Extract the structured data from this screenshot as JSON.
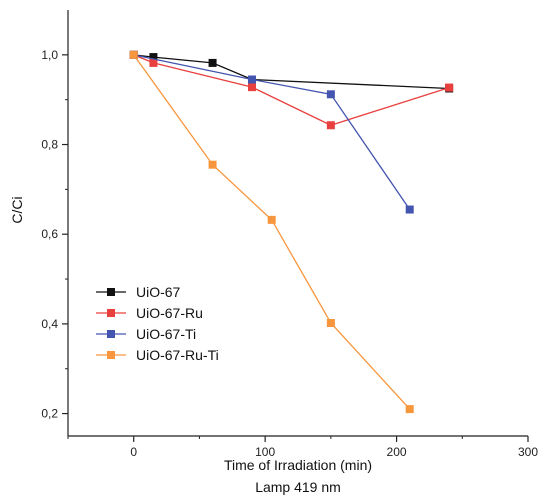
{
  "chart_data": {
    "type": "line",
    "xlabel": "Time of Irradiation (min)",
    "subtitle": "Lamp 419 nm",
    "ylabel": "C/Ci",
    "xlim": [
      -50,
      300
    ],
    "ylim": [
      0.15,
      1.1
    ],
    "xticks": [
      0,
      100,
      200,
      300
    ],
    "xtick_labels": [
      "0",
      "100",
      "200",
      "300"
    ],
    "yticks": [
      0.2,
      0.4,
      0.6,
      0.8,
      1.0
    ],
    "ytick_labels": [
      "0,2",
      "0,4",
      "0,6",
      "0,8",
      "1,0"
    ],
    "grid": false,
    "legend_position": "bottom-left",
    "series": [
      {
        "name": "UiO-67",
        "color": "#111111",
        "marker": "square",
        "x": [
          0,
          15,
          60,
          90,
          240
        ],
        "y": [
          1.0,
          0.995,
          0.982,
          0.945,
          0.925
        ]
      },
      {
        "name": "UiO-67-Ru",
        "color": "#e8403f",
        "marker": "square",
        "x": [
          0,
          15,
          90,
          150,
          240
        ],
        "y": [
          1.0,
          0.982,
          0.928,
          0.843,
          0.927
        ]
      },
      {
        "name": "UiO-67-Ti",
        "color": "#4455b0",
        "marker": "square",
        "x": [
          0,
          90,
          150,
          210
        ],
        "y": [
          1.0,
          0.945,
          0.912,
          0.655
        ]
      },
      {
        "name": "UiO-67-Ru-Ti",
        "color": "#f7963c",
        "marker": "square",
        "x": [
          0,
          60,
          105,
          150,
          210
        ],
        "y": [
          1.0,
          0.755,
          0.632,
          0.402,
          0.21
        ]
      }
    ]
  }
}
